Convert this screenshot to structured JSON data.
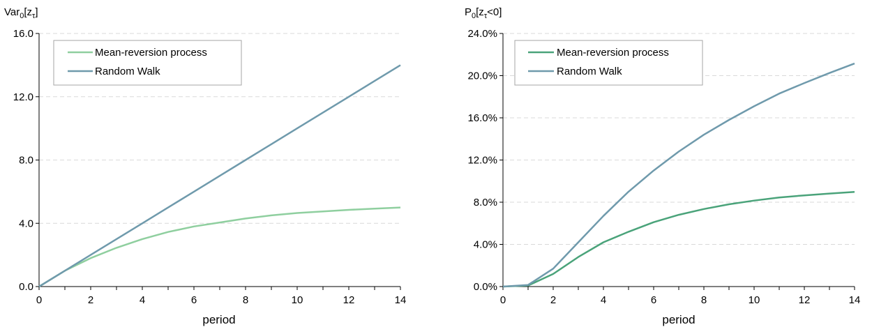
{
  "colors": {
    "mean_reversion_left": "#8fcf9f",
    "mean_reversion_right": "#4aa37a",
    "random_walk": "#6f9aac",
    "grid": "#d9d9d9",
    "axis": "#000000"
  },
  "chart_data": [
    {
      "type": "line",
      "title": "",
      "ylabel_main": "Var",
      "ylabel_sub0": "0",
      "ylabel_mid": "[z",
      "ylabel_sub1": "τ",
      "ylabel_end": "]",
      "xlabel": "period",
      "xlim": [
        0,
        14
      ],
      "ylim": [
        0,
        16
      ],
      "xticks": [
        0,
        2,
        4,
        6,
        8,
        10,
        12,
        14
      ],
      "yticks": [
        0,
        4,
        8,
        12,
        16
      ],
      "ytick_labels": [
        "0.0",
        "4.0",
        "8.0",
        "12.0",
        "16.0"
      ],
      "grid": true,
      "legend_position": "top-left",
      "x": [
        0,
        1,
        2,
        3,
        4,
        5,
        6,
        7,
        8,
        9,
        10,
        11,
        12,
        13,
        14
      ],
      "series": [
        {
          "name": "Mean-reversion process",
          "color_key": "mean_reversion_left",
          "values": [
            0,
            1.0,
            1.8,
            2.45,
            3.0,
            3.45,
            3.8,
            4.05,
            4.3,
            4.5,
            4.65,
            4.75,
            4.85,
            4.93,
            5.0
          ]
        },
        {
          "name": "Random Walk",
          "color_key": "random_walk",
          "values": [
            0,
            1,
            2,
            3,
            4,
            5,
            6,
            7,
            8,
            9,
            10,
            11,
            12,
            13,
            14
          ]
        }
      ]
    },
    {
      "type": "line",
      "title": "",
      "ylabel_main": "P",
      "ylabel_sub0": "0",
      "ylabel_mid": "[z",
      "ylabel_sub1": "τ",
      "ylabel_end": "<0]",
      "xlabel": "period",
      "xlim": [
        0,
        14
      ],
      "ylim": [
        0,
        24
      ],
      "xticks": [
        0,
        2,
        4,
        6,
        8,
        10,
        12,
        14
      ],
      "yticks": [
        0,
        4,
        8,
        12,
        16,
        20,
        24
      ],
      "ytick_labels": [
        "0.0%",
        "4.0%",
        "8.0%",
        "12.0%",
        "16.0%",
        "20.0%",
        "24.0%"
      ],
      "grid": true,
      "legend_position": "top-left",
      "x": [
        0,
        1,
        2,
        3,
        4,
        5,
        6,
        7,
        8,
        9,
        10,
        11,
        12,
        13,
        14
      ],
      "series": [
        {
          "name": "Mean-reversion process",
          "color_key": "mean_reversion_right",
          "values": [
            0,
            0.1,
            1.2,
            2.8,
            4.2,
            5.2,
            6.1,
            6.8,
            7.35,
            7.8,
            8.15,
            8.45,
            8.65,
            8.82,
            8.98
          ]
        },
        {
          "name": "Random Walk",
          "color_key": "random_walk",
          "values": [
            0,
            0.15,
            1.7,
            4.2,
            6.7,
            9.0,
            11.0,
            12.8,
            14.4,
            15.8,
            17.1,
            18.3,
            19.3,
            20.25,
            21.15
          ]
        }
      ]
    }
  ]
}
